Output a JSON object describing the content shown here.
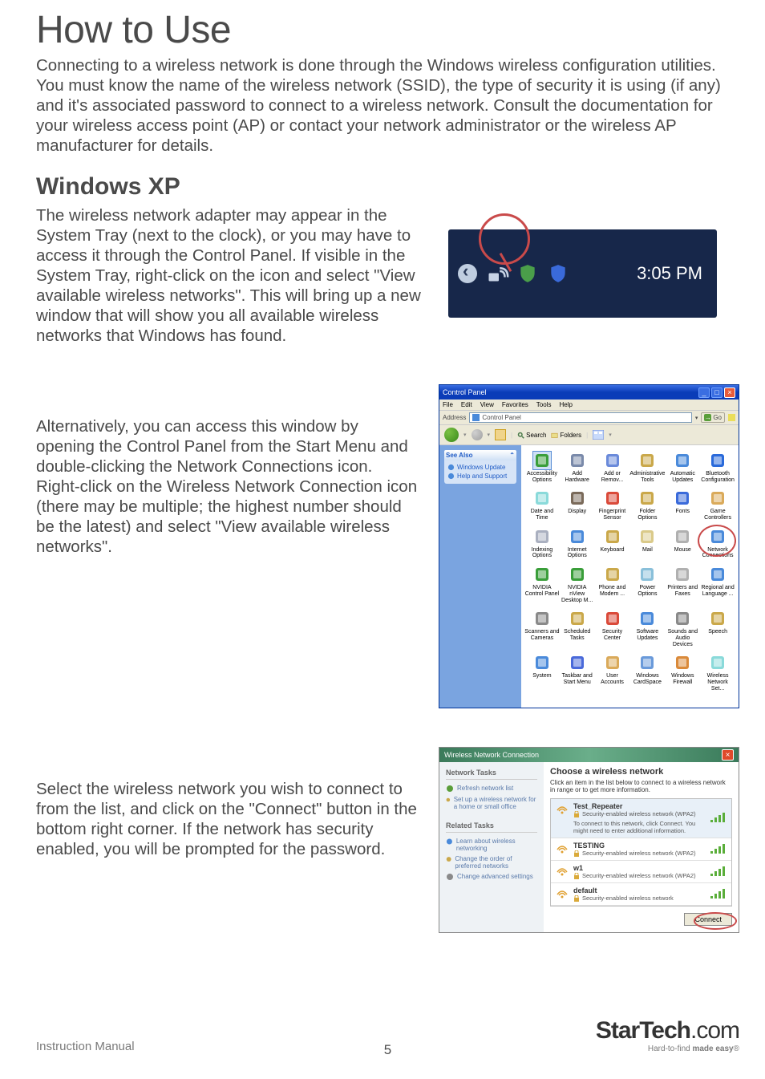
{
  "page": {
    "title": "How to Use",
    "intro": "Connecting to a wireless network is done through the Windows wireless configuration utilities.  You must know the name of the wireless network (SSID), the type of security it is using (if any) and it's associated password to connect to a wireless network.  Consult the documentation for your wireless access point (AP) or contact your network administrator or the wireless AP manufacturer for details.",
    "section_heading": "Windows XP",
    "paragraph1": "The wireless network adapter may appear in the System Tray (next to the clock), or you may have to access it through the Control Panel.  If visible in the System Tray, right-click on the icon and select \"View available wireless networks\".  This will bring up a new window that will show you all available wireless networks that Windows has found.",
    "paragraph2": "Alternatively, you can access this window by opening the Control Panel from the Start Menu and double-clicking the Network Connections icon.  Right-click on the Wireless Network Connection icon (there may be multiple; the highest number should be the latest) and select \"View available wireless networks\".",
    "paragraph3": "Select the wireless network you wish to connect to from the list, and click on the \"Connect\" button in the bottom right corner.  If the network has security enabled, you will be prompted for the password."
  },
  "systray": {
    "background": "#17274a",
    "time": "3:05 PM",
    "time_color": "#ffffff",
    "highlight_color": "#c94a4a",
    "icons": [
      "wifi",
      "shield-green",
      "shield-blue"
    ]
  },
  "control_panel": {
    "title": "Control Panel",
    "menubar": [
      "File",
      "Edit",
      "View",
      "Favorites",
      "Tools",
      "Help"
    ],
    "address_label": "Address",
    "address_value": "Control Panel",
    "go_label": "Go",
    "toolbar": {
      "search": "Search",
      "folders": "Folders"
    },
    "sidebar": {
      "header": "See Also",
      "links": [
        "Windows Update",
        "Help and Support"
      ]
    },
    "highlight_color": "#c94a4a",
    "icon_grid_columns": 6,
    "items": [
      {
        "label": "Accessibility Options",
        "color": "#3a9e3a",
        "highlighted": true
      },
      {
        "label": "Add Hardware",
        "color": "#7a8aaa"
      },
      {
        "label": "Add or Remov...",
        "color": "#6a8ada"
      },
      {
        "label": "Administrative Tools",
        "color": "#caa84a"
      },
      {
        "label": "Automatic Updates",
        "color": "#4a8ada"
      },
      {
        "label": "Bluetooth Configuration",
        "color": "#2a6ada"
      },
      {
        "label": "Date and Time",
        "color": "#8adada"
      },
      {
        "label": "Display",
        "color": "#7a6a5a"
      },
      {
        "label": "Fingerprint Sensor",
        "color": "#da4a3a"
      },
      {
        "label": "Folder Options",
        "color": "#caa84a"
      },
      {
        "label": "Fonts",
        "color": "#3a6ada"
      },
      {
        "label": "Game Controllers",
        "color": "#daaa5a"
      },
      {
        "label": "Indexing Options",
        "color": "#aab0c0"
      },
      {
        "label": "Internet Options",
        "color": "#4a8ada"
      },
      {
        "label": "Keyboard",
        "color": "#caa84a"
      },
      {
        "label": "Mail",
        "color": "#daca8a"
      },
      {
        "label": "Mouse",
        "color": "#b0b0b0"
      },
      {
        "label": "Network Connections",
        "color": "#4a8ada",
        "circled": true
      },
      {
        "label": "NVIDIA Control Panel",
        "color": "#3a9e3a"
      },
      {
        "label": "NVIDIA nView Desktop M...",
        "color": "#3a9e3a"
      },
      {
        "label": "Phone and Modem ...",
        "color": "#caa84a"
      },
      {
        "label": "Power Options",
        "color": "#8ac0da"
      },
      {
        "label": "Printers and Faxes",
        "color": "#b0b0b0"
      },
      {
        "label": "Regional and Language ...",
        "color": "#4a8ada"
      },
      {
        "label": "Scanners and Cameras",
        "color": "#8a8a8a"
      },
      {
        "label": "Scheduled Tasks",
        "color": "#caa84a"
      },
      {
        "label": "Security Center",
        "color": "#da4a3a"
      },
      {
        "label": "Software Updates",
        "color": "#4a8ada"
      },
      {
        "label": "Sounds and Audio Devices",
        "color": "#8a8a8a"
      },
      {
        "label": "Speech",
        "color": "#caa84a"
      },
      {
        "label": "System",
        "color": "#4a8ada"
      },
      {
        "label": "Taskbar and Start Menu",
        "color": "#4a6ada"
      },
      {
        "label": "User Accounts",
        "color": "#daaa5a"
      },
      {
        "label": "Windows CardSpace",
        "color": "#6a9ada"
      },
      {
        "label": "Windows Firewall",
        "color": "#da8a3a"
      },
      {
        "label": "Wireless Network Set...",
        "color": "#8adada"
      }
    ]
  },
  "wireless_dialog": {
    "title": "Wireless Network Connection",
    "sidebar": {
      "section1_header": "Network Tasks",
      "section1_links": [
        "Refresh network list",
        "Set up a wireless network for a home or small office"
      ],
      "section2_header": "Related Tasks",
      "section2_links": [
        "Learn about wireless networking",
        "Change the order of preferred networks",
        "Change advanced settings"
      ]
    },
    "main": {
      "header": "Choose a wireless network",
      "description": "Click an item in the list below to connect to a wireless network in range or to get more information.",
      "connect_label": "Connect",
      "extra_note": "To connect to this network, click Connect. You might need to enter additional information.",
      "networks": [
        {
          "name": "Test_Repeater",
          "security": "Security-enabled wireless network (WPA2)",
          "signal": 4,
          "selected": true
        },
        {
          "name": "TESTING",
          "security": "Security-enabled wireless network (WPA2)",
          "signal": 4,
          "selected": false
        },
        {
          "name": "w1",
          "security": "Security-enabled wireless network (WPA2)",
          "signal": 4,
          "selected": false
        },
        {
          "name": "default",
          "security": "Security-enabled wireless network",
          "signal": 4,
          "selected": false
        }
      ]
    },
    "highlight_color": "#c94a4a",
    "signal_bar_color": "#5aae3a"
  },
  "footer": {
    "manual_label": "Instruction Manual",
    "page_number": "5",
    "brand_main": "StarTech",
    "brand_ext": ".com",
    "tagline_prefix": "Hard-to-find ",
    "tagline_bold": "made easy",
    "tagline_suffix": "®"
  }
}
